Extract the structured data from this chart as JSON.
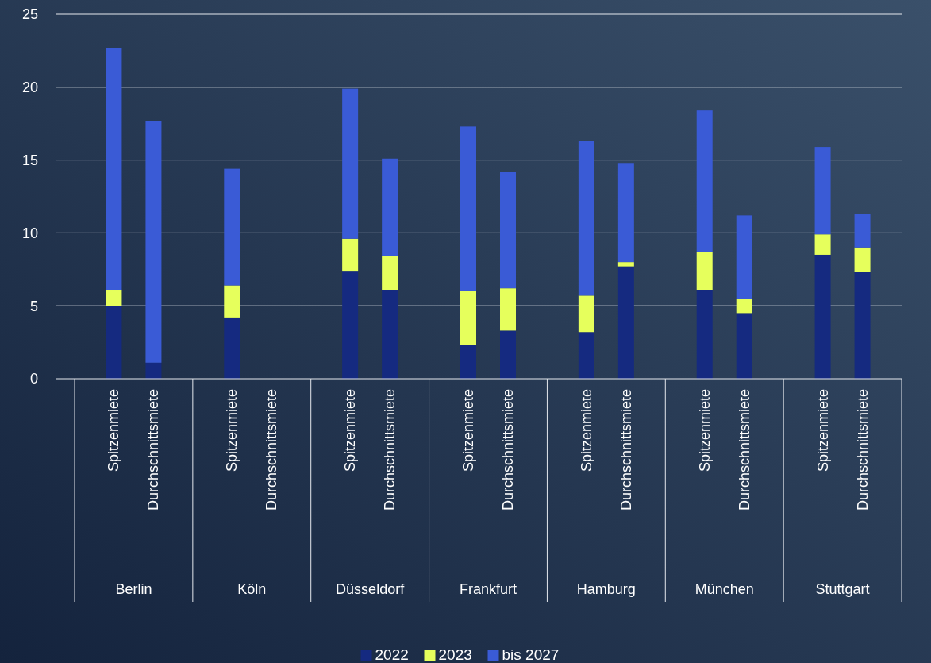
{
  "chart_data": {
    "type": "bar",
    "stacked": true,
    "categories": [
      "Spitzenmiete",
      "Durchschnittsmiete",
      "Spitzenmiete",
      "Durchschnittsmiete",
      "Spitzenmiete",
      "Durchschnittsmiete",
      "Spitzenmiete",
      "Durchschnittsmiete",
      "Spitzenmiete",
      "Durchschnittsmiete",
      "Spitzenmiete",
      "Durchschnittsmiete",
      "Spitzenmiete",
      "Durchschnittsmiete"
    ],
    "series": [
      {
        "name": "2022",
        "color": "#152a80",
        "values": [
          5.0,
          1.1,
          4.2,
          null,
          7.4,
          6.1,
          2.3,
          3.3,
          3.2,
          7.7,
          6.1,
          4.5,
          8.5,
          7.3
        ]
      },
      {
        "name": "2023",
        "color": "#e6ff5c",
        "values": [
          1.1,
          null,
          2.2,
          null,
          2.2,
          2.3,
          3.7,
          2.9,
          2.5,
          0.3,
          2.6,
          1.0,
          1.4,
          1.7
        ]
      },
      {
        "name": "bis 2027",
        "color": "#3a5bd6",
        "values": [
          16.6,
          16.6,
          8.0,
          null,
          10.3,
          6.7,
          11.3,
          8.0,
          10.6,
          6.8,
          9.7,
          5.7,
          6.0,
          2.3
        ]
      }
    ],
    "annotations": [
      "Berlin",
      "Köln",
      "Düsseldorf",
      "Frankfurt",
      "Hamburg",
      "München",
      "Stuttgart"
    ],
    "ylim": [
      0,
      25
    ],
    "yticks": [
      0,
      5,
      10,
      15,
      20,
      25
    ],
    "grid": "y",
    "legend": "bottom"
  }
}
